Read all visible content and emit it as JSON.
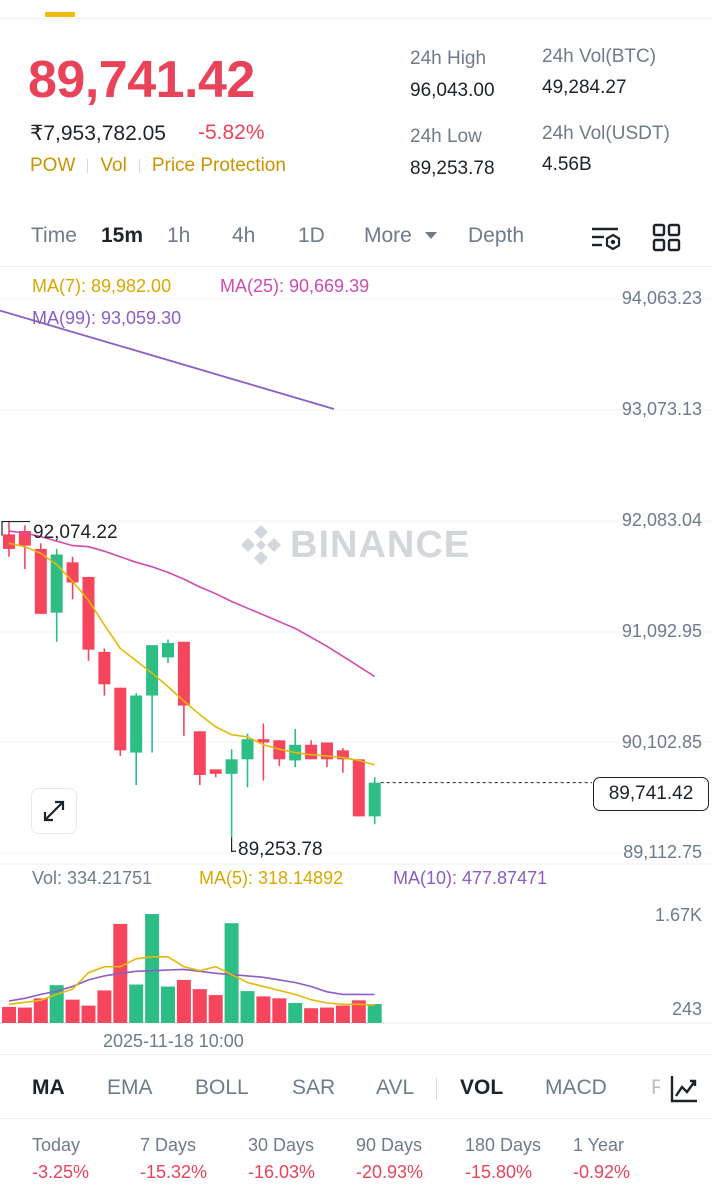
{
  "header": {
    "last_price": "89,741.42",
    "inr_price": "₹7,953,782.05",
    "change_pct": "-5.82%",
    "tags": [
      "POW",
      "Vol",
      "Price Protection"
    ],
    "high_label": "24h High",
    "high_value": "96,043.00",
    "low_label": "24h Low",
    "low_value": "89,253.78",
    "vol_btc_label": "24h Vol(BTC)",
    "vol_btc_value": "49,284.27",
    "vol_usdt_label": "24h Vol(USDT)",
    "vol_usdt_value": "4.56B"
  },
  "timeframes": {
    "items": [
      "Time",
      "15m",
      "1h",
      "4h",
      "1D",
      "More",
      "Depth"
    ],
    "active": "15m"
  },
  "ma_legend": {
    "ma7": "MA(7): 89,982.00",
    "ma25": "MA(25): 90,669.39",
    "ma99": "MA(99): 93,059.30"
  },
  "price_axis": [
    "94,063.23",
    "93,073.13",
    "92,083.04",
    "91,092.95",
    "90,102.85",
    "89,112.75"
  ],
  "annotations": {
    "high_marker": "92,074.22",
    "low_marker": "89,253.78",
    "current_price_tag": "89,741.42"
  },
  "watermark": "BINANCE",
  "volume_legend": {
    "vol": "Vol: 334.21751",
    "ma5": "MA(5): 318.14892",
    "ma10": "MA(10): 477.87471"
  },
  "volume_axis": [
    "1.67K",
    "243"
  ],
  "time_label": "2025-11-18 10:00",
  "indicators": {
    "items": [
      "MA",
      "EMA",
      "BOLL",
      "SAR",
      "AVL",
      "VOL",
      "MACD",
      "R"
    ],
    "active": [
      "MA",
      "VOL"
    ]
  },
  "performance": [
    {
      "label": "Today",
      "value": "-3.25%"
    },
    {
      "label": "7 Days",
      "value": "-15.32%"
    },
    {
      "label": "30 Days",
      "value": "-16.03%"
    },
    {
      "label": "90 Days",
      "value": "-20.93%"
    },
    {
      "label": "180 Days",
      "value": "-15.80%"
    },
    {
      "label": "1 Year",
      "value": "-0.92%"
    }
  ],
  "colors": {
    "up": "#2ebd85",
    "down": "#f6465d",
    "accent": "#f0b90b",
    "ma7": "#e5b80b",
    "ma25": "#d04ab3",
    "ma99": "#8c5cc7"
  },
  "chart_data": {
    "type": "candlestick",
    "price_scale": {
      "top": 94063.23,
      "bottom": 89112.75
    },
    "candles": [
      {
        "o": 91960,
        "h": 92074.22,
        "l": 91760,
        "c": 91830
      },
      {
        "o": 91990,
        "h": 92040,
        "l": 91650,
        "c": 91860
      },
      {
        "o": 91830,
        "h": 91880,
        "l": 91250,
        "c": 91250
      },
      {
        "o": 91260,
        "h": 91830,
        "l": 91000,
        "c": 91780
      },
      {
        "o": 91710,
        "h": 91760,
        "l": 91380,
        "c": 91530
      },
      {
        "o": 91580,
        "h": 91580,
        "l": 90830,
        "c": 90930
      },
      {
        "o": 90910,
        "h": 90940,
        "l": 90520,
        "c": 90620
      },
      {
        "o": 90590,
        "h": 90590,
        "l": 89980,
        "c": 90030
      },
      {
        "o": 90010,
        "h": 90540,
        "l": 89720,
        "c": 90520
      },
      {
        "o": 90520,
        "h": 90970,
        "l": 90010,
        "c": 90970
      },
      {
        "o": 90860,
        "h": 91020,
        "l": 90810,
        "c": 90990
      },
      {
        "o": 91000,
        "h": 91000,
        "l": 90160,
        "c": 90430
      },
      {
        "o": 90200,
        "h": 90200,
        "l": 89720,
        "c": 89810
      },
      {
        "o": 89860,
        "h": 89860,
        "l": 89790,
        "c": 89820
      },
      {
        "o": 89820,
        "h": 90040,
        "l": 89253.78,
        "c": 89950
      },
      {
        "o": 89950,
        "h": 90180,
        "l": 89700,
        "c": 90130
      },
      {
        "o": 90130,
        "h": 90270,
        "l": 89760,
        "c": 90100
      },
      {
        "o": 90120,
        "h": 90120,
        "l": 89890,
        "c": 89950
      },
      {
        "o": 89940,
        "h": 90220,
        "l": 89880,
        "c": 90080
      },
      {
        "o": 90080,
        "h": 90120,
        "l": 89950,
        "c": 89950
      },
      {
        "o": 90100,
        "h": 90100,
        "l": 89880,
        "c": 89950
      },
      {
        "o": 90030,
        "h": 90050,
        "l": 89830,
        "c": 89950
      },
      {
        "o": 89950,
        "h": 89950,
        "l": 89440,
        "c": 89440
      },
      {
        "o": 89440,
        "h": 89790,
        "l": 89370,
        "c": 89741.42
      }
    ],
    "ma7": [
      91880,
      91850,
      91790,
      91690,
      91540,
      91370,
      91150,
      90940,
      90830,
      90720,
      90600,
      90470,
      90350,
      90240,
      90170,
      90150,
      90080,
      90040,
      90010,
      89990,
      89980,
      89965,
      89940,
      89900
    ],
    "ma25": [
      91990,
      91970,
      91940,
      91900,
      91860,
      91850,
      91810,
      91760,
      91710,
      91670,
      91620,
      91560,
      91490,
      91430,
      91360,
      91300,
      91240,
      91180,
      91120,
      91040,
      90960,
      90870,
      90780,
      90690
    ],
    "ma99_start": 93960,
    "ma99_end": 93080,
    "volumes": [
      290,
      280,
      420,
      620,
      400,
      310,
      540,
      1550,
      630,
      1700,
      600,
      700,
      560,
      470,
      1560,
      530,
      450,
      420,
      350,
      270,
      280,
      310,
      390,
      334
    ],
    "vol_ma5": [
      330,
      360,
      390,
      480,
      560,
      810,
      900,
      900,
      1020,
      1050,
      1050,
      900,
      840,
      900,
      780,
      660,
      600,
      540,
      480,
      400,
      350,
      330,
      330,
      318
    ],
    "vol_ma10": [
      380,
      420,
      480,
      530,
      600,
      700,
      760,
      800,
      830,
      840,
      850,
      860,
      830,
      800,
      780,
      760,
      740,
      700,
      660,
      600,
      520,
      480,
      480,
      478
    ],
    "vol_scale": {
      "top": 1670,
      "bottom": 243
    }
  }
}
